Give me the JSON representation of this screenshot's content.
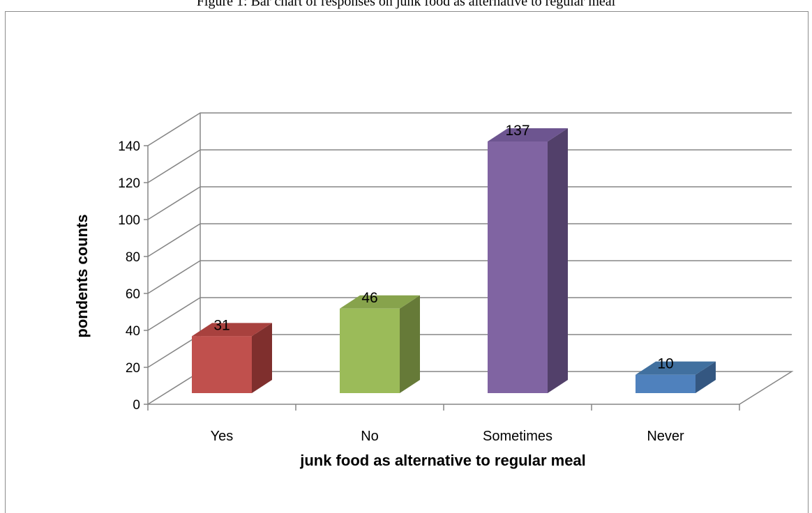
{
  "caption": "Figure 1: Bar chart of responses on junk food as alternative to regular meal",
  "chart_data": {
    "type": "bar",
    "categories": [
      "Yes",
      "No",
      "Sometimes",
      "Never"
    ],
    "values": [
      31,
      46,
      137,
      10
    ],
    "data_labels": [
      "31",
      "46",
      "137",
      "10"
    ],
    "xlabel": "junk food as alternative to regular meal",
    "ylabel": "pondents counts",
    "ylim": [
      0,
      140
    ],
    "ytick_labels": [
      "0",
      "20",
      "40",
      "60",
      "80",
      "100",
      "120",
      "140"
    ],
    "grid": true,
    "legend": "none",
    "colors": [
      "#c0504d",
      "#9bbb59",
      "#8064a2",
      "#4f81bd"
    ],
    "side_colors": [
      "#7f2f2d",
      "#667a38",
      "#52406a",
      "#345781"
    ],
    "top_colors": [
      "#a8413e",
      "#87a34c",
      "#6d5590",
      "#41709f"
    ]
  }
}
